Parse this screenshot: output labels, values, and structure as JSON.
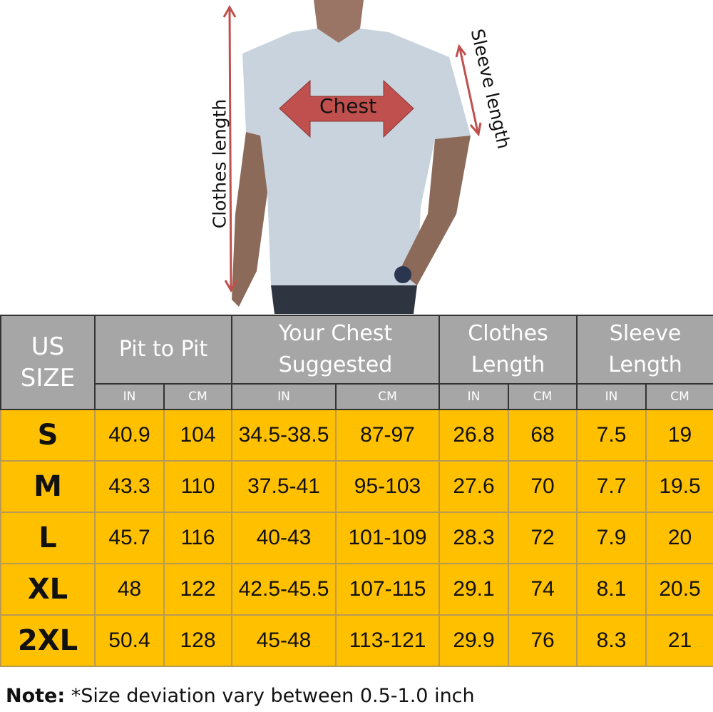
{
  "illustration": {
    "chest_label": "Chest",
    "clothes_length_label": "Clothes   length",
    "sleeve_length_label": "Sleeve  length",
    "arrow_color": "#c0504d"
  },
  "table": {
    "colors": {
      "header": "#a6a6a6",
      "rows": "#ffc000"
    },
    "size_header": "US SIZE",
    "groups": [
      "Pit to Pit",
      "Your Chest Suggested",
      "Clothes Length",
      "Sleeve Length"
    ],
    "units": [
      "IN",
      "CM",
      "IN",
      "CM",
      "IN",
      "CM",
      "IN",
      "CM"
    ],
    "rows": [
      [
        "S",
        "40.9",
        "104",
        "34.5-38.5",
        "87-97",
        "26.8",
        "68",
        "7.5",
        "19"
      ],
      [
        "M",
        "43.3",
        "110",
        "37.5-41",
        "95-103",
        "27.6",
        "70",
        "7.7",
        "19.5"
      ],
      [
        "L",
        "45.7",
        "116",
        "40-43",
        "101-109",
        "28.3",
        "72",
        "7.9",
        "20"
      ],
      [
        "XL",
        "48",
        "122",
        "42.5-45.5",
        "107-115",
        "29.1",
        "74",
        "8.1",
        "20.5"
      ],
      [
        "2XL",
        "50.4",
        "128",
        "45-48",
        "113-121",
        "29.9",
        "76",
        "8.3",
        "21"
      ]
    ]
  },
  "note": {
    "label": "Note:",
    "text": " *Size deviation vary between 0.5-1.0 inch"
  }
}
